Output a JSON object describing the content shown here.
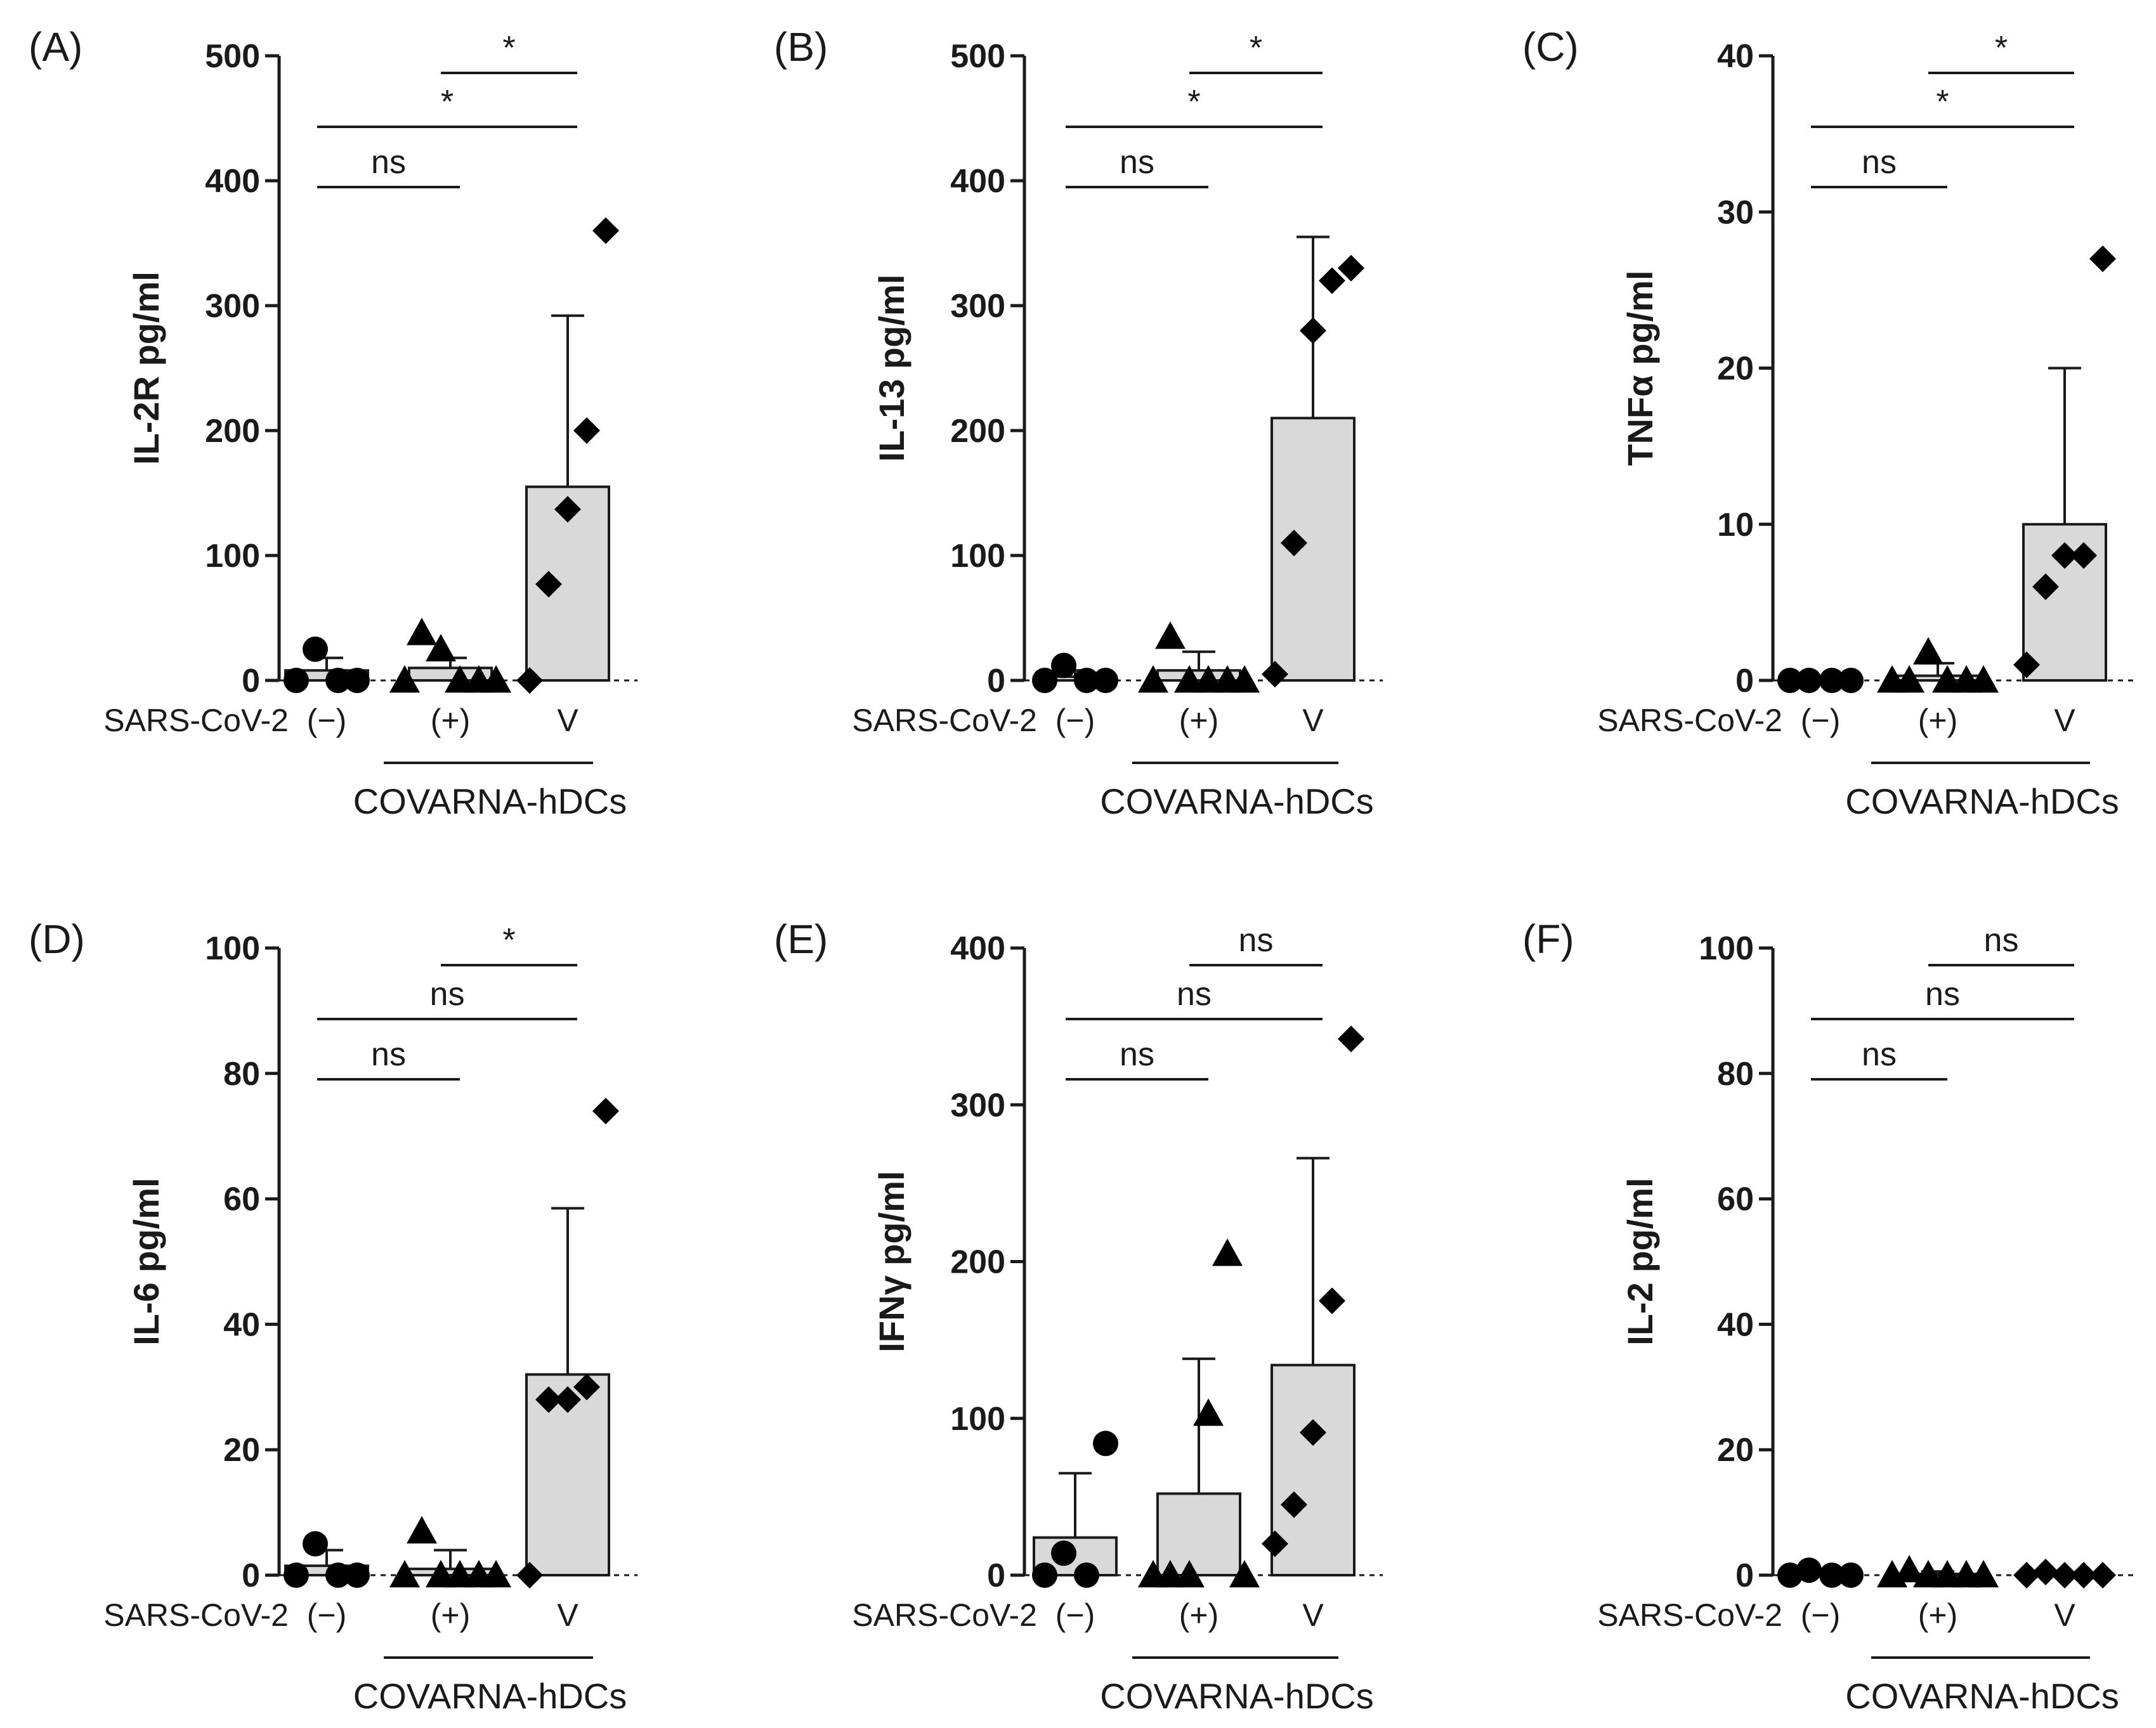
{
  "x_prefix": "SARS-CoV-2",
  "categories": [
    "(−)",
    "(+)",
    "V"
  ],
  "group_label": "COVARNA-hDCs",
  "chart_data": [
    {
      "panel": "(A)",
      "type": "bar",
      "ylabel": "IL-2R pg/ml",
      "ylim": [
        0,
        500
      ],
      "yticks": [
        0,
        100,
        200,
        300,
        400,
        500
      ],
      "means": [
        8,
        10,
        155
      ],
      "sd": [
        10,
        8,
        137
      ],
      "points": [
        [
          0,
          25,
          0,
          0
        ],
        [
          0,
          38,
          25,
          0,
          0,
          0
        ],
        [
          0,
          77,
          137,
          200,
          360
        ]
      ],
      "comparisons": [
        {
          "a": 0,
          "b": 1,
          "label": "ns"
        },
        {
          "a": 0,
          "b": 2,
          "label": "*"
        },
        {
          "a": 1,
          "b": 2,
          "label": "*"
        }
      ]
    },
    {
      "panel": "(B)",
      "type": "bar",
      "ylabel": "IL-13 pg/ml",
      "ylim": [
        0,
        500
      ],
      "yticks": [
        0,
        100,
        200,
        300,
        400,
        500
      ],
      "means": [
        3,
        8,
        210
      ],
      "sd": [
        5,
        15,
        145
      ],
      "points": [
        [
          0,
          12,
          0,
          0
        ],
        [
          0,
          35,
          0,
          0,
          0,
          0
        ],
        [
          5,
          110,
          280,
          320,
          330
        ]
      ],
      "comparisons": [
        {
          "a": 0,
          "b": 1,
          "label": "ns"
        },
        {
          "a": 0,
          "b": 2,
          "label": "*"
        },
        {
          "a": 1,
          "b": 2,
          "label": "*"
        }
      ]
    },
    {
      "panel": "(C)",
      "type": "bar",
      "ylabel": "TNFα pg/ml",
      "ylim": [
        0,
        40
      ],
      "yticks": [
        0,
        10,
        20,
        30,
        40
      ],
      "means": [
        0,
        0.3,
        10
      ],
      "sd": [
        0,
        0.8,
        10
      ],
      "points": [
        [
          0,
          0,
          0,
          0
        ],
        [
          0,
          0,
          1.8,
          0,
          0,
          0
        ],
        [
          1,
          6,
          8,
          8,
          27
        ]
      ],
      "comparisons": [
        {
          "a": 0,
          "b": 1,
          "label": "ns"
        },
        {
          "a": 0,
          "b": 2,
          "label": "*"
        },
        {
          "a": 1,
          "b": 2,
          "label": "*"
        }
      ]
    },
    {
      "panel": "(D)",
      "type": "bar",
      "ylabel": "IL-6 pg/ml",
      "ylim": [
        0,
        100
      ],
      "yticks": [
        0,
        20,
        40,
        60,
        80,
        100
      ],
      "means": [
        1.5,
        1,
        32
      ],
      "sd": [
        2.5,
        3,
        26.5
      ],
      "points": [
        [
          0,
          5,
          0,
          0
        ],
        [
          0,
          7,
          0,
          0,
          0,
          0
        ],
        [
          0,
          28,
          28,
          30,
          74
        ]
      ],
      "comparisons": [
        {
          "a": 0,
          "b": 1,
          "label": "ns"
        },
        {
          "a": 0,
          "b": 2,
          "label": "ns"
        },
        {
          "a": 1,
          "b": 2,
          "label": "*"
        }
      ]
    },
    {
      "panel": "(E)",
      "type": "bar",
      "ylabel": "IFNγ pg/ml",
      "ylim": [
        0,
        400
      ],
      "yticks": [
        0,
        100,
        200,
        300,
        400
      ],
      "means": [
        24,
        52,
        134
      ],
      "sd": [
        41,
        86,
        132
      ],
      "points": [
        [
          0,
          14,
          0,
          84
        ],
        [
          0,
          0,
          0,
          103,
          205,
          0
        ],
        [
          20,
          45,
          91,
          175,
          342
        ]
      ],
      "comparisons": [
        {
          "a": 0,
          "b": 1,
          "label": "ns"
        },
        {
          "a": 0,
          "b": 2,
          "label": "ns"
        },
        {
          "a": 1,
          "b": 2,
          "label": "ns"
        }
      ]
    },
    {
      "panel": "(F)",
      "type": "bar",
      "ylabel": "IL-2 pg/ml",
      "ylim": [
        0,
        100
      ],
      "yticks": [
        0,
        20,
        40,
        60,
        80,
        100
      ],
      "means": [
        0.3,
        0.2,
        0.1
      ],
      "sd": [
        0.5,
        0.4,
        0.2
      ],
      "points": [
        [
          0,
          0.8,
          0,
          0
        ],
        [
          0,
          0.8,
          0,
          0,
          0,
          0
        ],
        [
          0,
          0.5,
          0,
          0,
          0
        ]
      ],
      "comparisons": [
        {
          "a": 0,
          "b": 1,
          "label": "ns"
        },
        {
          "a": 0,
          "b": 2,
          "label": "ns"
        },
        {
          "a": 1,
          "b": 2,
          "label": "ns"
        }
      ]
    }
  ]
}
